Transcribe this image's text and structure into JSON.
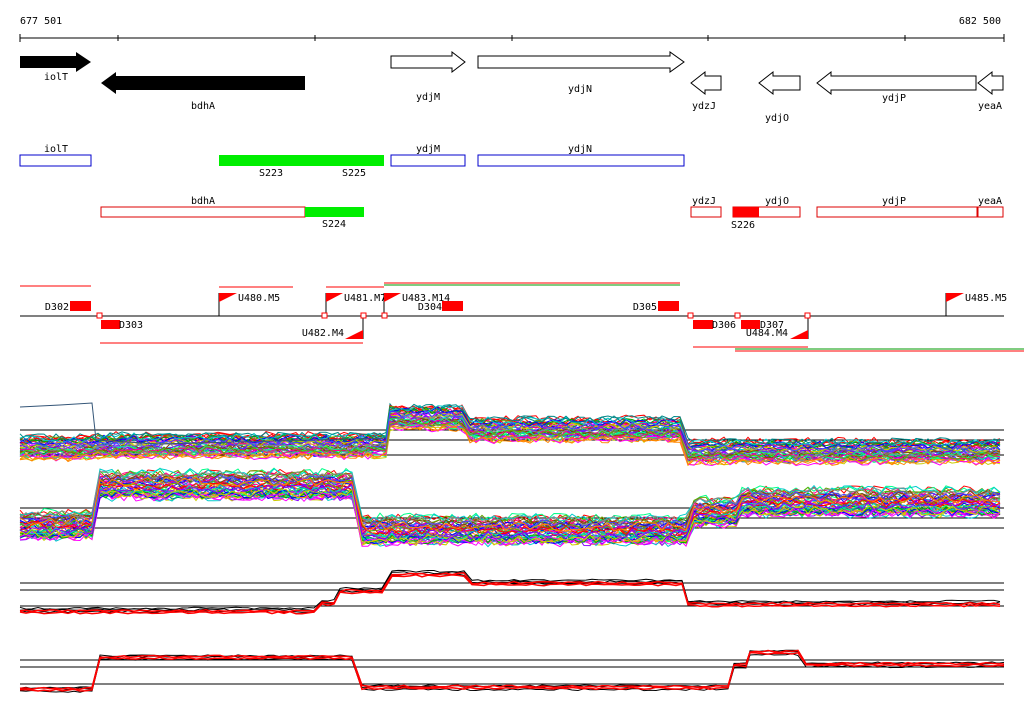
{
  "ruler": {
    "start_label": "677 501",
    "end_label": "682 500"
  },
  "genes": [
    {
      "name": "iolT",
      "filled": true,
      "strand": "+"
    },
    {
      "name": "bdhA",
      "filled": true,
      "strand": "-"
    },
    {
      "name": "ydjM",
      "filled": false,
      "strand": "+"
    },
    {
      "name": "ydjN",
      "filled": false,
      "strand": "+"
    },
    {
      "name": "ydzJ",
      "filled": false,
      "strand": "-"
    },
    {
      "name": "ydjO",
      "filled": false,
      "strand": "-"
    },
    {
      "name": "ydjP",
      "filled": false,
      "strand": "-"
    },
    {
      "name": "yeaA",
      "filled": false,
      "strand": "-"
    }
  ],
  "plus_track": {
    "boxes": [
      "iolT",
      "ydjM",
      "ydjN"
    ],
    "segments": [
      "S223",
      "S225"
    ]
  },
  "minus_track": {
    "boxes": [
      "bdhA",
      "ydzJ",
      "ydjO",
      "ydjP",
      "yeaA"
    ],
    "segments": [
      "S224",
      "S226"
    ]
  },
  "features": {
    "down": [
      "D302",
      "D303",
      "D304",
      "D305",
      "D306",
      "D307"
    ],
    "up": [
      "U480.M5",
      "U481.M7",
      "U482.M4",
      "U483.M14",
      "U484.M4",
      "U485.M5"
    ]
  },
  "colors": {
    "filled_gene": "#000000",
    "plus_track": "#0000cc",
    "minus_track": "#dd0000",
    "segment": "#00ee00",
    "feature": "#ff0000"
  }
}
